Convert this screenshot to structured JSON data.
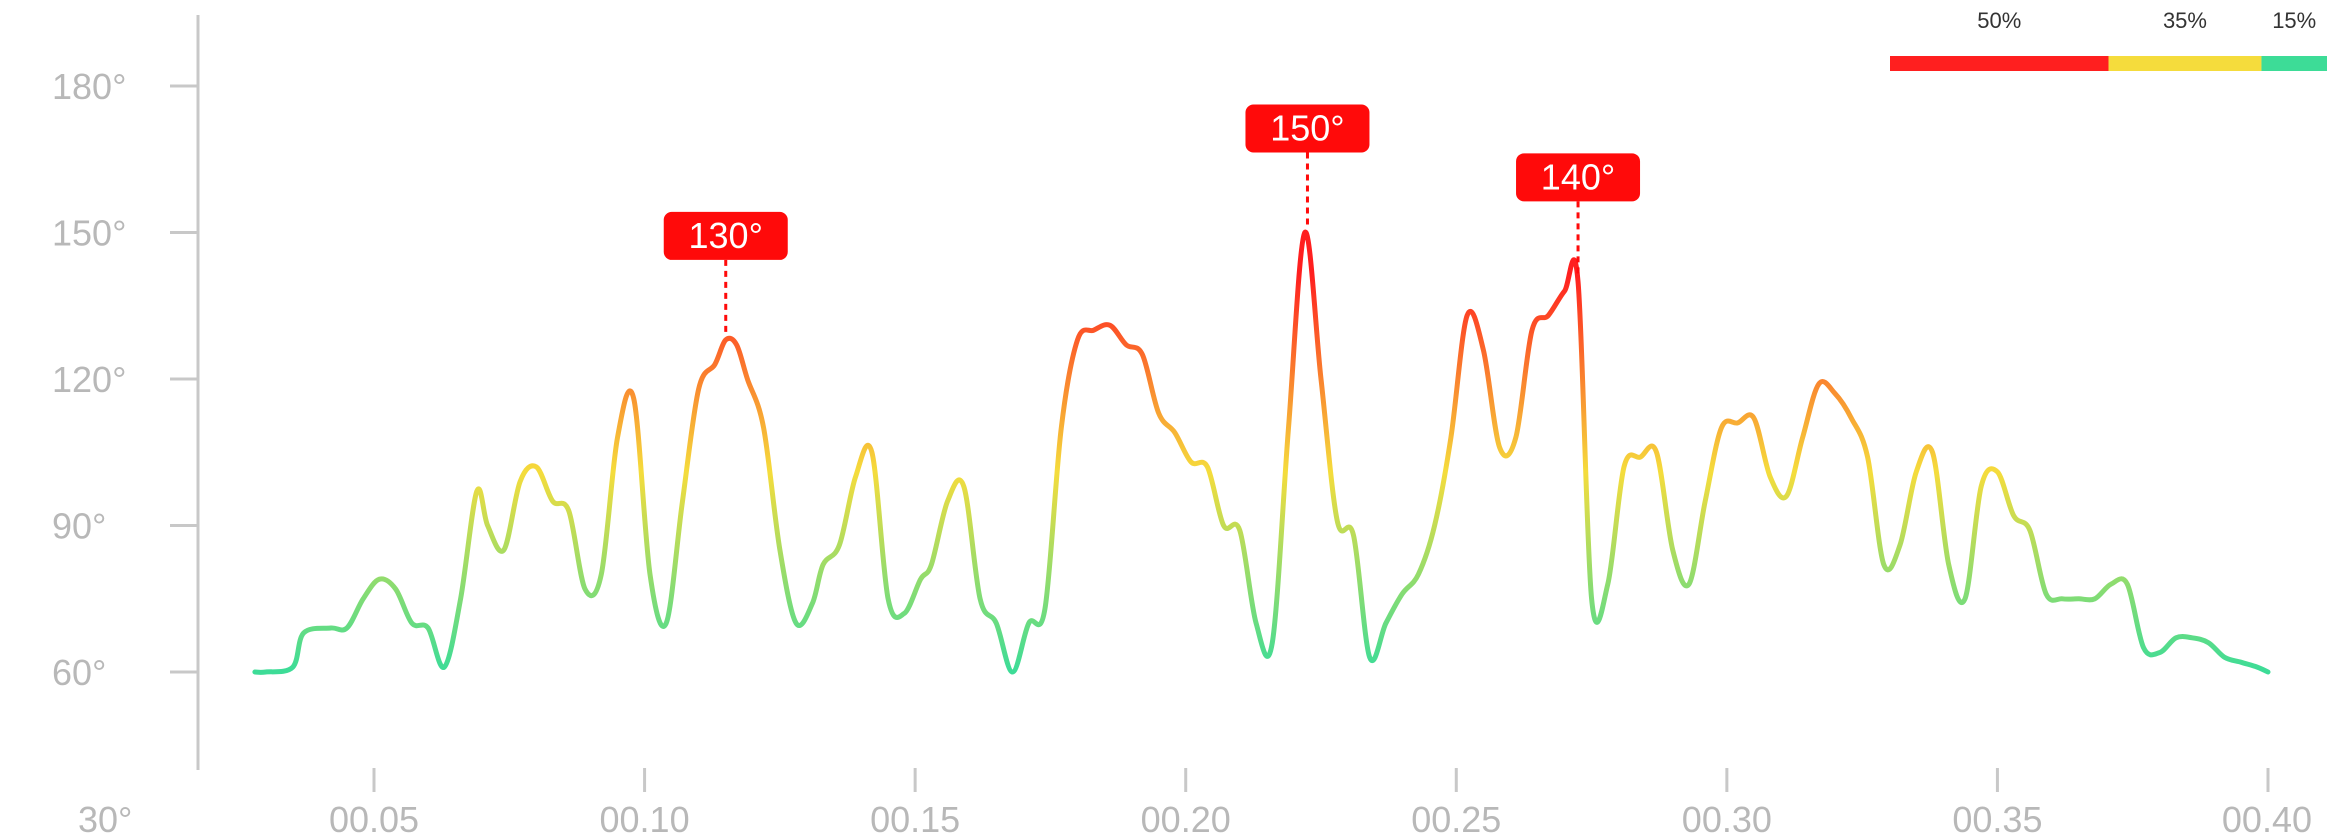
{
  "chart_data": {
    "type": "line",
    "title": "",
    "xlabel": "",
    "ylabel": "",
    "x_ticks": [
      "00.05",
      "00.10",
      "00.15",
      "00.20",
      "00.25",
      "00.30",
      "00.35",
      "00.40"
    ],
    "y_ticks": [
      "30°",
      "60°",
      "90°",
      "120°",
      "150°",
      "180°"
    ],
    "xlim": [
      0.0,
      0.4
    ],
    "ylim": [
      30,
      180
    ],
    "grid": false,
    "series": [
      {
        "x": [
          0.028,
          0.03,
          0.035,
          0.037,
          0.042,
          0.045,
          0.048,
          0.051,
          0.054,
          0.057,
          0.06,
          0.063,
          0.066,
          0.069,
          0.071,
          0.074,
          0.077,
          0.08,
          0.083,
          0.086,
          0.089,
          0.092,
          0.095,
          0.098,
          0.101,
          0.104,
          0.107,
          0.11,
          0.113,
          0.115,
          0.117,
          0.119,
          0.122,
          0.125,
          0.128,
          0.131,
          0.133,
          0.136,
          0.139,
          0.142,
          0.145,
          0.148,
          0.151,
          0.153,
          0.156,
          0.159,
          0.162,
          0.165,
          0.168,
          0.171,
          0.174,
          0.177,
          0.18,
          0.183,
          0.186,
          0.189,
          0.192,
          0.195,
          0.198,
          0.201,
          0.204,
          0.207,
          0.21,
          0.213,
          0.216,
          0.219,
          0.222,
          0.225,
          0.228,
          0.231,
          0.234,
          0.237,
          0.24,
          0.243,
          0.246,
          0.249,
          0.252,
          0.255,
          0.258,
          0.261,
          0.264,
          0.267,
          0.27,
          0.2725,
          0.275,
          0.278,
          0.281,
          0.284,
          0.287,
          0.29,
          0.293,
          0.296,
          0.299,
          0.302,
          0.305,
          0.308,
          0.311,
          0.314,
          0.317,
          0.32,
          0.323,
          0.326,
          0.329,
          0.332,
          0.335,
          0.338,
          0.341,
          0.344,
          0.347,
          0.35,
          0.353,
          0.356,
          0.359,
          0.362,
          0.365,
          0.368,
          0.371,
          0.374,
          0.377,
          0.38,
          0.383,
          0.386,
          0.389,
          0.392,
          0.395,
          0.398,
          0.4
        ],
        "values": [
          60,
          60,
          61,
          68,
          69,
          69,
          75,
          79,
          77,
          70,
          69,
          61,
          75,
          97,
          90,
          85,
          99,
          102,
          95,
          93,
          77,
          80,
          108,
          116,
          80,
          70,
          95,
          118,
          123,
          128,
          127,
          120,
          110,
          85,
          70,
          74,
          82,
          86,
          100,
          105,
          75,
          72,
          79,
          82,
          95,
          98,
          75,
          70,
          60,
          70,
          73,
          110,
          128,
          130,
          131,
          127,
          125,
          113,
          109,
          103,
          102,
          90,
          89,
          70,
          66,
          110,
          150,
          120,
          91,
          88,
          63,
          70,
          76,
          80,
          90,
          108,
          133,
          126,
          106,
          108,
          130,
          133,
          138,
          140,
          75,
          78,
          102,
          104,
          105,
          85,
          78,
          95,
          110,
          111,
          112,
          100,
          96,
          108,
          119,
          117,
          112,
          104,
          82,
          86,
          101,
          105,
          82,
          75,
          98,
          101,
          92,
          89,
          76,
          75,
          75,
          75,
          78,
          78,
          65,
          64,
          67,
          67,
          66,
          63,
          62,
          61,
          60
        ]
      }
    ],
    "peak_labels": [
      {
        "x": 0.115,
        "y": 128,
        "text": "130°"
      },
      {
        "x": 0.2225,
        "y": 150,
        "text": "150°"
      },
      {
        "x": 0.2725,
        "y": 140,
        "text": "140°"
      }
    ],
    "distribution_bar": [
      {
        "label": "50%",
        "fraction": 0.5,
        "color": "#ff1f1f"
      },
      {
        "label": "35%",
        "fraction": 0.35,
        "color": "#f5dc3c"
      },
      {
        "label": "15%",
        "fraction": 0.15,
        "color": "#3ddc97"
      }
    ],
    "colors": {
      "axis": "#c8c8c8",
      "tick_text": "#b8b8b8",
      "peak_badge": "#ff0a0a",
      "gradient_low": "#3ddc97",
      "gradient_mid": "#f5dc3c",
      "gradient_high": "#ff1f1f"
    }
  }
}
